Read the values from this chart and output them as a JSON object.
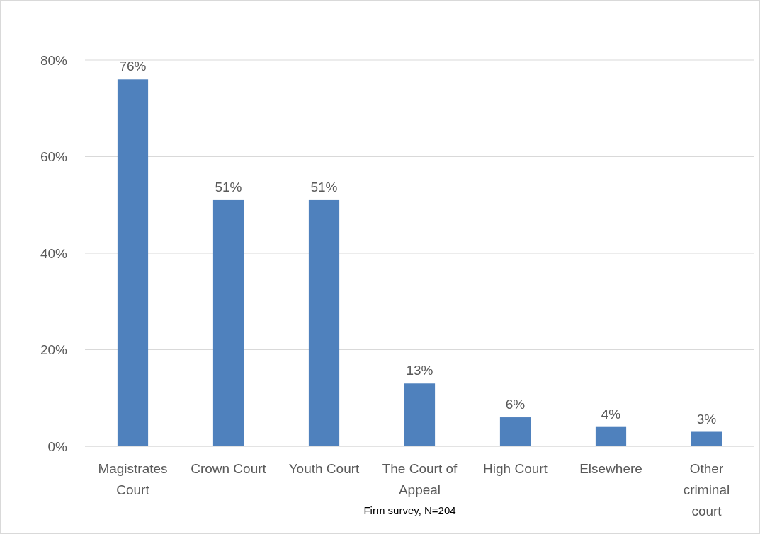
{
  "chart_data": {
    "type": "bar",
    "categories": [
      "Magistrates Court",
      "Crown Court",
      "Youth Court",
      "The Court of Appeal",
      "High Court",
      "Elsewhere",
      "Other criminal court"
    ],
    "values": [
      76,
      51,
      51,
      13,
      6,
      4,
      3
    ],
    "value_labels": [
      "76%",
      "51%",
      "51%",
      "13%",
      "6%",
      "4%",
      "3%"
    ],
    "color": "#4f81bd",
    "ylim": [
      0,
      80
    ],
    "yticks": [
      {
        "value": 0,
        "label": "0%"
      },
      {
        "value": 20,
        "label": "20%"
      },
      {
        "value": 40,
        "label": "40%"
      },
      {
        "value": 60,
        "label": "60%"
      },
      {
        "value": 80,
        "label": "80%"
      }
    ],
    "grid": "y",
    "annotations": [
      "Firm survey, N=204"
    ]
  }
}
